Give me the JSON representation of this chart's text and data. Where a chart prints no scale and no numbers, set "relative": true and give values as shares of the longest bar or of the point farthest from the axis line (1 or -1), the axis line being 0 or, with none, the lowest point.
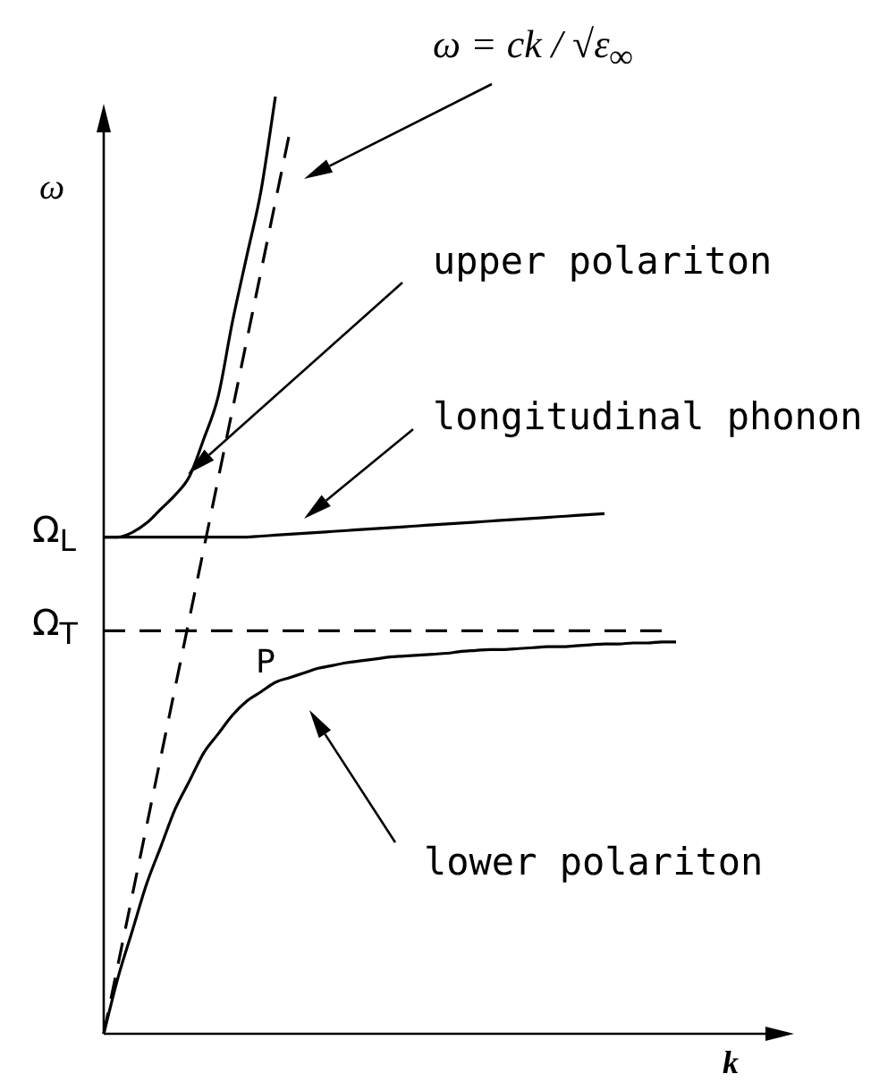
{
  "chart_data": {
    "type": "line",
    "relative": true,
    "xlabel": "k",
    "ylabel": "ω",
    "legend": false,
    "categories": [
      null,
      null,
      null,
      null,
      null,
      null,
      null,
      null,
      null,
      null,
      null,
      null,
      null,
      null,
      null,
      null,
      null,
      null,
      null,
      null,
      null,
      null,
      null,
      null,
      null,
      null,
      null,
      null,
      null,
      null,
      null,
      null,
      null,
      null,
      null,
      null,
      null,
      null,
      null,
      null,
      null,
      null,
      null,
      null,
      null,
      null,
      null,
      null,
      null,
      null,
      null,
      null
    ],
    "series": [
      {
        "color": "#000000",
        "values": [
          0.53,
          0.53,
          0.535,
          0.545,
          0.56,
          0.575,
          0.595,
          0.635,
          0.68,
          0.76,
          0.83,
          0.9,
          1,
          null,
          null,
          null,
          null,
          null,
          null,
          null,
          null,
          null,
          null,
          null,
          null,
          null,
          null,
          null,
          null,
          null,
          null,
          null,
          null,
          null,
          null,
          null,
          null,
          null,
          null,
          null,
          null,
          null,
          null,
          null,
          null,
          null,
          null,
          null,
          null,
          null,
          null,
          null
        ]
      },
      {
        "color": "#000000",
        "values": [
          0.53,
          0.53,
          0.53,
          0.53,
          0.53,
          0.53,
          0.53,
          0.53,
          0.53,
          0.53,
          0.53,
          0.531,
          0.532,
          0.533,
          0.534,
          0.535,
          0.536,
          0.537,
          0.538,
          0.539,
          0.54,
          0.541,
          0.542,
          0.543,
          0.544,
          0.545,
          0.546,
          0.547,
          0.548,
          0.549,
          0.55,
          0.551,
          0.552,
          0.553,
          0.554,
          0.555,
          null,
          null,
          null,
          null,
          null,
          null,
          null,
          null,
          null,
          null,
          null,
          null,
          null,
          null,
          null,
          null
        ]
      },
      {
        "color": "#000000",
        "line_style": "dashed",
        "values": [
          0.43,
          0.43,
          0.43,
          0.43,
          0.43,
          0.43,
          0.43,
          0.43,
          0.43,
          0.43,
          0.43,
          0.43,
          0.43,
          0.43,
          0.43,
          0.43,
          0.43,
          0.43,
          0.43,
          0.43,
          0.43,
          0.43,
          0.43,
          0.43,
          0.43,
          0.43,
          0.43,
          0.43,
          0.43,
          0.43,
          0.43,
          0.43,
          0.43,
          0.43,
          0.43,
          0.43,
          0.43,
          0.43,
          0.43,
          0.43,
          null,
          null,
          null,
          null,
          null,
          null,
          null,
          null,
          null,
          null,
          null,
          null
        ]
      },
      {
        "color": "#000000",
        "values": [
          0,
          0.06,
          0.11,
          0.16,
          0.2,
          0.24,
          0.27,
          0.3,
          0.32,
          0.34,
          0.355,
          0.365,
          0.375,
          0.38,
          0.385,
          0.39,
          0.393,
          0.396,
          0.398,
          0.4,
          0.402,
          0.403,
          0.404,
          0.405,
          0.406,
          0.408,
          0.409,
          0.41,
          0.41,
          0.411,
          0.412,
          0.413,
          0.413,
          0.414,
          0.415,
          0.416,
          0.416,
          0.417,
          0.417,
          0.418,
          0.418,
          null,
          null,
          null,
          null,
          null,
          null,
          null,
          null,
          null,
          null,
          null
        ]
      },
      {
        "color": "#000000",
        "line_style": "dashed",
        "values": [
          0,
          0.074,
          0.148,
          0.222,
          0.296,
          0.37,
          0.444,
          0.518,
          0.592,
          0.666,
          0.74,
          0.814,
          0.888,
          0.962,
          null,
          null,
          null,
          null,
          null,
          null,
          null,
          null,
          null,
          null,
          null,
          null,
          null,
          null,
          null,
          null,
          null,
          null,
          null,
          null,
          null,
          null,
          null,
          null,
          null,
          null,
          null,
          null,
          null,
          null,
          null,
          null,
          null,
          null,
          null,
          null,
          null,
          null
        ]
      }
    ],
    "annotations": [
      "ω = ck / √ε$_{∞}$",
      "upper polariton",
      "longitudinal phonon",
      "lower polariton",
      "P",
      "Ω$_{L}$",
      "Ω$_{T}$"
    ]
  }
}
